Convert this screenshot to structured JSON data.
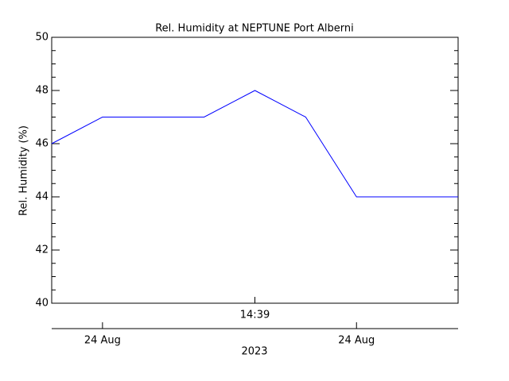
{
  "chart_data": {
    "type": "line",
    "title": "Rel. Humidity at NEPTUNE Port Alberni",
    "ylabel": "Rel. Humidity (%)",
    "x": [
      0,
      1,
      2,
      3,
      4,
      5,
      6,
      7,
      8
    ],
    "series": [
      {
        "name": "Rel. Humidity",
        "color": "#0000ff",
        "values": [
          46,
          47,
          47,
          47,
          48,
          47,
          44,
          44,
          44
        ]
      }
    ],
    "xlim": [
      0,
      8
    ],
    "xticks": [
      {
        "value": 4,
        "label": "14:39"
      }
    ],
    "x2ticks": [
      {
        "value": 1,
        "label": "24 Aug"
      },
      {
        "value": 6,
        "label": "24 Aug"
      }
    ],
    "x2label": "2023",
    "ylim": [
      40,
      50
    ],
    "yticks": [
      40,
      42,
      44,
      46,
      48,
      50
    ],
    "yminorticks": [
      40.5,
      41,
      41.5,
      42.5,
      43,
      43.5,
      44.5,
      45,
      45.5,
      46.5,
      47,
      47.5,
      48.5,
      49,
      49.5
    ]
  }
}
